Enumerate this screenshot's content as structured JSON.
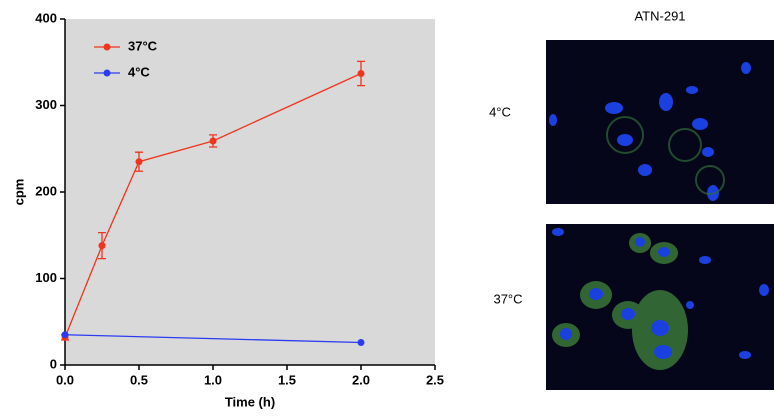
{
  "chart_data": {
    "type": "line",
    "xlabel": "Time (h)",
    "ylabel": "cpm",
    "series": [
      {
        "name": "37°C",
        "color": "#f0341e",
        "x": [
          0,
          0.25,
          0.5,
          1,
          2
        ],
        "values": [
          32,
          138,
          235,
          259,
          337
        ],
        "errors": [
          3,
          15,
          11,
          7,
          14
        ]
      },
      {
        "name": "4°C",
        "color": "#2b3cf0",
        "x": [
          0,
          2
        ],
        "values": [
          35,
          26
        ]
      }
    ],
    "xlim": [
      0,
      2.5
    ],
    "xticks": [
      {
        "value": 0,
        "label": "0.0"
      },
      {
        "value": 0.5,
        "label": "0.5"
      },
      {
        "value": 1,
        "label": "1.0"
      },
      {
        "value": 1.5,
        "label": "1.5"
      },
      {
        "value": 2,
        "label": "2.0"
      },
      {
        "value": 2.5,
        "label": "2.5"
      }
    ],
    "ylim": [
      0,
      400
    ],
    "yticks": [
      0,
      100,
      200,
      300,
      400
    ],
    "legend": "upper left"
  },
  "image_panel": {
    "title": "ATN-291",
    "rows": [
      "4°C",
      "37°C"
    ]
  }
}
